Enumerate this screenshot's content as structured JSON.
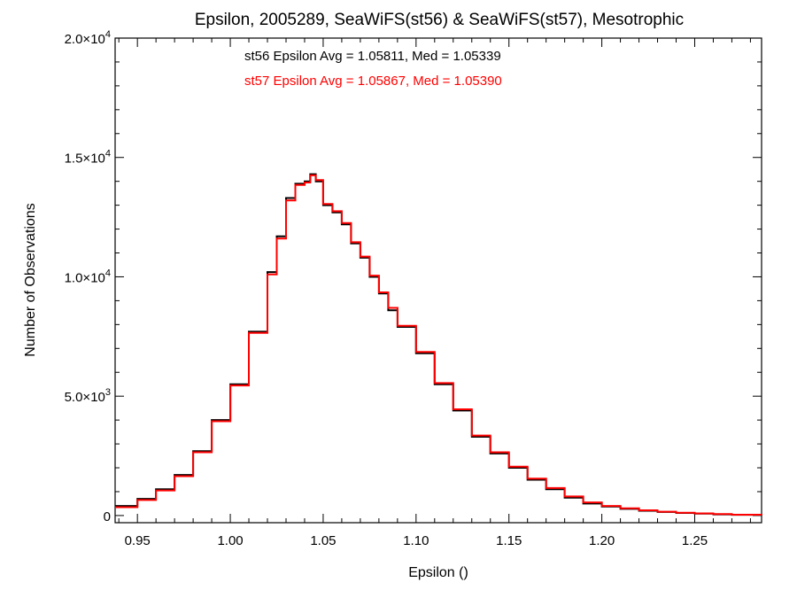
{
  "chart_data": {
    "type": "line",
    "title": "Epsilon, 2005289, SeaWiFS(st56) & SeaWiFS(st57), Mesotrophic",
    "xlabel": "Epsilon ()",
    "ylabel": "Number of Observations",
    "xlim": [
      0.938,
      1.286
    ],
    "ylim": [
      -300,
      20000
    ],
    "x_ticks": [
      {
        "value": 0.95,
        "label": "0.95"
      },
      {
        "value": 1.0,
        "label": "1.00"
      },
      {
        "value": 1.05,
        "label": "1.05"
      },
      {
        "value": 1.1,
        "label": "1.10"
      },
      {
        "value": 1.15,
        "label": "1.15"
      },
      {
        "value": 1.2,
        "label": "1.20"
      },
      {
        "value": 1.25,
        "label": "1.25"
      }
    ],
    "y_ticks": [
      {
        "value": 0,
        "mantissa": "0",
        "exponent": ""
      },
      {
        "value": 5000,
        "mantissa": "5.0×10",
        "exponent": "3"
      },
      {
        "value": 10000,
        "mantissa": "1.0×10",
        "exponent": "4"
      },
      {
        "value": 15000,
        "mantissa": "1.5×10",
        "exponent": "4"
      },
      {
        "value": 20000,
        "mantissa": "2.0×10",
        "exponent": "4"
      }
    ],
    "annotations": [
      {
        "text": "st56 Epsilon Avg = 1.05811, Med = 1.05339",
        "color": "#000000"
      },
      {
        "text": "st57 Epsilon Avg = 1.05867, Med = 1.05390",
        "color": "#ff0000"
      }
    ],
    "series": [
      {
        "color": "#000000",
        "x": [
          0.938,
          0.95,
          0.96,
          0.97,
          0.98,
          0.99,
          1.0,
          1.01,
          1.02,
          1.025,
          1.03,
          1.035,
          1.04,
          1.043,
          1.046,
          1.05,
          1.055,
          1.06,
          1.065,
          1.07,
          1.075,
          1.08,
          1.085,
          1.09,
          1.1,
          1.11,
          1.12,
          1.13,
          1.14,
          1.15,
          1.16,
          1.17,
          1.18,
          1.19,
          1.2,
          1.21,
          1.22,
          1.23,
          1.24,
          1.25,
          1.26,
          1.27,
          1.286
        ],
        "y": [
          400,
          700,
          1100,
          1700,
          2700,
          4000,
          5500,
          7700,
          10200,
          11700,
          13300,
          13900,
          14000,
          14300,
          14000,
          13000,
          12700,
          12200,
          11400,
          10800,
          10000,
          9300,
          8600,
          7900,
          6800,
          5500,
          4400,
          3300,
          2600,
          2000,
          1500,
          1100,
          750,
          500,
          380,
          280,
          200,
          150,
          110,
          80,
          50,
          30,
          20
        ]
      },
      {
        "color": "#ff0000",
        "x": [
          0.938,
          0.95,
          0.96,
          0.97,
          0.98,
          0.99,
          1.0,
          1.01,
          1.02,
          1.025,
          1.03,
          1.035,
          1.04,
          1.043,
          1.046,
          1.05,
          1.055,
          1.06,
          1.065,
          1.07,
          1.075,
          1.08,
          1.085,
          1.09,
          1.1,
          1.11,
          1.12,
          1.13,
          1.14,
          1.15,
          1.16,
          1.17,
          1.18,
          1.19,
          1.2,
          1.21,
          1.22,
          1.23,
          1.24,
          1.25,
          1.26,
          1.27,
          1.286
        ],
        "y": [
          350,
          650,
          1050,
          1650,
          2650,
          3950,
          5450,
          7650,
          10100,
          11600,
          13200,
          13850,
          13950,
          14250,
          14050,
          13050,
          12750,
          12250,
          11450,
          10850,
          10050,
          9350,
          8700,
          7950,
          6850,
          5550,
          4450,
          3350,
          2650,
          2050,
          1550,
          1150,
          800,
          550,
          400,
          300,
          220,
          160,
          120,
          90,
          60,
          35,
          25
        ]
      }
    ]
  }
}
